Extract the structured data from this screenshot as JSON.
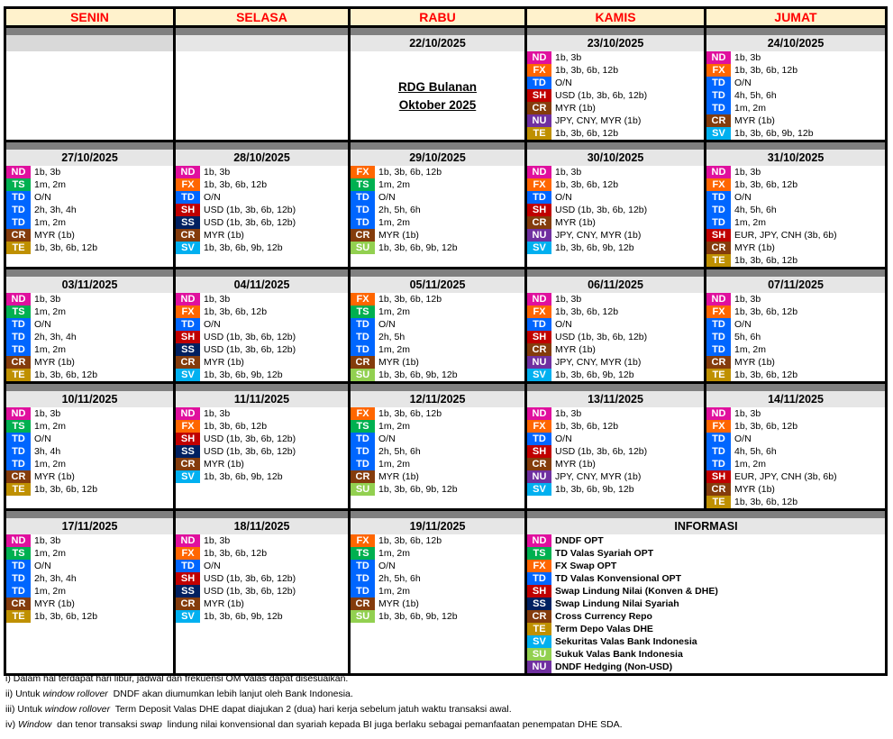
{
  "days": [
    "SENIN",
    "SELASA",
    "RABU",
    "KAMIS",
    "JUMAT"
  ],
  "colors": {
    "ND": "#e0109e",
    "TS": "#00b050",
    "FX": "#ff6600",
    "TD": "#0066ff",
    "SH": "#c00000",
    "SS": "#002060",
    "CR": "#843c0c",
    "TE": "#bf9000",
    "SV": "#00b0f0",
    "SU": "#92d050",
    "NU": "#7030a0"
  },
  "weeks": [
    [
      {
        "date": "",
        "entries": []
      },
      {
        "date": "",
        "entries": []
      },
      {
        "date": "22/10/2025",
        "note": [
          "RDG Bulanan",
          "Oktober 2025"
        ],
        "entries": []
      },
      {
        "date": "23/10/2025",
        "entries": [
          [
            "ND",
            "1b, 3b"
          ],
          [
            "FX",
            "1b, 3b, 6b, 12b"
          ],
          [
            "TD",
            "O/N"
          ],
          [
            "SH",
            "USD (1b, 3b, 6b, 12b)"
          ],
          [
            "CR",
            "MYR (1b)"
          ],
          [
            "NU",
            "JPY, CNY, MYR (1b)"
          ],
          [
            "TE",
            "1b, 3b, 6b, 12b"
          ]
        ]
      },
      {
        "date": "24/10/2025",
        "entries": [
          [
            "ND",
            "1b, 3b"
          ],
          [
            "FX",
            "1b, 3b, 6b, 12b"
          ],
          [
            "TD",
            "O/N"
          ],
          [
            "TD",
            "4h, 5h, 6h"
          ],
          [
            "TD",
            "1m, 2m"
          ],
          [
            "CR",
            "MYR (1b)"
          ],
          [
            "SV",
            "1b, 3b, 6b, 9b, 12b"
          ]
        ]
      }
    ],
    [
      {
        "date": "27/10/2025",
        "entries": [
          [
            "ND",
            "1b, 3b"
          ],
          [
            "TS",
            "1m, 2m"
          ],
          [
            "TD",
            "O/N"
          ],
          [
            "TD",
            "2h, 3h, 4h"
          ],
          [
            "TD",
            "1m, 2m"
          ],
          [
            "CR",
            "MYR (1b)"
          ],
          [
            "TE",
            "1b, 3b, 6b, 12b"
          ]
        ]
      },
      {
        "date": "28/10/2025",
        "entries": [
          [
            "ND",
            "1b, 3b"
          ],
          [
            "FX",
            "1b, 3b, 6b, 12b"
          ],
          [
            "TD",
            "O/N"
          ],
          [
            "SH",
            "USD (1b, 3b, 6b, 12b)"
          ],
          [
            "SS",
            "USD (1b, 3b, 6b, 12b)"
          ],
          [
            "CR",
            "MYR (1b)"
          ],
          [
            "SV",
            "1b, 3b, 6b, 9b, 12b"
          ]
        ]
      },
      {
        "date": "29/10/2025",
        "entries": [
          [
            "FX",
            "1b, 3b, 6b, 12b"
          ],
          [
            "TS",
            "1m, 2m"
          ],
          [
            "TD",
            "O/N"
          ],
          [
            "TD",
            "2h, 5h, 6h"
          ],
          [
            "TD",
            "1m, 2m"
          ],
          [
            "CR",
            "MYR (1b)"
          ],
          [
            "SU",
            "1b, 3b, 6b, 9b, 12b"
          ]
        ]
      },
      {
        "date": "30/10/2025",
        "entries": [
          [
            "ND",
            "1b, 3b"
          ],
          [
            "FX",
            "1b, 3b, 6b, 12b"
          ],
          [
            "TD",
            "O/N"
          ],
          [
            "SH",
            "USD (1b, 3b, 6b, 12b)"
          ],
          [
            "CR",
            "MYR (1b)"
          ],
          [
            "NU",
            "JPY, CNY, MYR (1b)"
          ],
          [
            "SV",
            "1b, 3b, 6b, 9b, 12b"
          ]
        ]
      },
      {
        "date": "31/10/2025",
        "entries": [
          [
            "ND",
            "1b, 3b"
          ],
          [
            "FX",
            "1b, 3b, 6b, 12b"
          ],
          [
            "TD",
            "O/N"
          ],
          [
            "TD",
            "4h, 5h, 6h"
          ],
          [
            "TD",
            "1m, 2m"
          ],
          [
            "SH",
            "EUR, JPY, CNH (3b, 6b)"
          ],
          [
            "CR",
            "MYR (1b)"
          ],
          [
            "TE",
            "1b, 3b, 6b, 12b"
          ]
        ]
      }
    ],
    [
      {
        "date": "03/11/2025",
        "entries": [
          [
            "ND",
            "1b, 3b"
          ],
          [
            "TS",
            "1m, 2m"
          ],
          [
            "TD",
            "O/N"
          ],
          [
            "TD",
            "2h, 3h, 4h"
          ],
          [
            "TD",
            "1m, 2m"
          ],
          [
            "CR",
            "MYR (1b)"
          ],
          [
            "TE",
            "1b, 3b, 6b, 12b"
          ]
        ]
      },
      {
        "date": "04/11/2025",
        "entries": [
          [
            "ND",
            "1b, 3b"
          ],
          [
            "FX",
            "1b, 3b, 6b, 12b"
          ],
          [
            "TD",
            "O/N"
          ],
          [
            "SH",
            "USD (1b, 3b, 6b, 12b)"
          ],
          [
            "SS",
            "USD (1b, 3b, 6b, 12b)"
          ],
          [
            "CR",
            "MYR (1b)"
          ],
          [
            "SV",
            "1b, 3b, 6b, 9b, 12b"
          ]
        ]
      },
      {
        "date": "05/11/2025",
        "entries": [
          [
            "FX",
            "1b, 3b, 6b, 12b"
          ],
          [
            "TS",
            "1m, 2m"
          ],
          [
            "TD",
            "O/N"
          ],
          [
            "TD",
            "2h, 5h"
          ],
          [
            "TD",
            "1m, 2m"
          ],
          [
            "CR",
            "MYR (1b)"
          ],
          [
            "SU",
            "1b, 3b, 6b, 9b, 12b"
          ]
        ]
      },
      {
        "date": "06/11/2025",
        "entries": [
          [
            "ND",
            "1b, 3b"
          ],
          [
            "FX",
            "1b, 3b, 6b, 12b"
          ],
          [
            "TD",
            "O/N"
          ],
          [
            "SH",
            "USD (1b, 3b, 6b, 12b)"
          ],
          [
            "CR",
            "MYR (1b)"
          ],
          [
            "NU",
            "JPY, CNY, MYR (1b)"
          ],
          [
            "SV",
            "1b, 3b, 6b, 9b, 12b"
          ]
        ]
      },
      {
        "date": "07/11/2025",
        "entries": [
          [
            "ND",
            "1b, 3b"
          ],
          [
            "FX",
            "1b, 3b, 6b, 12b"
          ],
          [
            "TD",
            "O/N"
          ],
          [
            "TD",
            "5h, 6h"
          ],
          [
            "TD",
            "1m, 2m"
          ],
          [
            "CR",
            "MYR (1b)"
          ],
          [
            "TE",
            "1b, 3b, 6b, 12b"
          ]
        ]
      }
    ],
    [
      {
        "date": "10/11/2025",
        "entries": [
          [
            "ND",
            "1b, 3b"
          ],
          [
            "TS",
            "1m, 2m"
          ],
          [
            "TD",
            "O/N"
          ],
          [
            "TD",
            "3h, 4h"
          ],
          [
            "TD",
            "1m, 2m"
          ],
          [
            "CR",
            "MYR (1b)"
          ],
          [
            "TE",
            "1b, 3b, 6b, 12b"
          ]
        ]
      },
      {
        "date": "11/11/2025",
        "entries": [
          [
            "ND",
            "1b, 3b"
          ],
          [
            "FX",
            "1b, 3b, 6b, 12b"
          ],
          [
            "SH",
            "USD (1b, 3b, 6b, 12b)"
          ],
          [
            "SS",
            "USD (1b, 3b, 6b, 12b)"
          ],
          [
            "CR",
            "MYR (1b)"
          ],
          [
            "SV",
            "1b, 3b, 6b, 9b, 12b"
          ]
        ]
      },
      {
        "date": "12/11/2025",
        "entries": [
          [
            "FX",
            "1b, 3b, 6b, 12b"
          ],
          [
            "TS",
            "1m, 2m"
          ],
          [
            "TD",
            "O/N"
          ],
          [
            "TD",
            "2h, 5h, 6h"
          ],
          [
            "TD",
            "1m, 2m"
          ],
          [
            "CR",
            "MYR (1b)"
          ],
          [
            "SU",
            "1b, 3b, 6b, 9b, 12b"
          ]
        ]
      },
      {
        "date": "13/11/2025",
        "entries": [
          [
            "ND",
            "1b, 3b"
          ],
          [
            "FX",
            "1b, 3b, 6b, 12b"
          ],
          [
            "TD",
            "O/N"
          ],
          [
            "SH",
            "USD (1b, 3b, 6b, 12b)"
          ],
          [
            "CR",
            "MYR (1b)"
          ],
          [
            "NU",
            "JPY, CNY, MYR (1b)"
          ],
          [
            "SV",
            "1b, 3b, 6b, 9b, 12b"
          ]
        ]
      },
      {
        "date": "14/11/2025",
        "entries": [
          [
            "ND",
            "1b, 3b"
          ],
          [
            "FX",
            "1b, 3b, 6b, 12b"
          ],
          [
            "TD",
            "O/N"
          ],
          [
            "TD",
            "4h, 5h, 6h"
          ],
          [
            "TD",
            "1m, 2m"
          ],
          [
            "SH",
            "EUR, JPY, CNH (3b, 6b)"
          ],
          [
            "CR",
            "MYR (1b)"
          ],
          [
            "TE",
            "1b, 3b, 6b, 12b"
          ]
        ]
      }
    ],
    [
      {
        "date": "17/11/2025",
        "entries": [
          [
            "ND",
            "1b, 3b"
          ],
          [
            "TS",
            "1m, 2m"
          ],
          [
            "TD",
            "O/N"
          ],
          [
            "TD",
            "2h, 3h, 4h"
          ],
          [
            "TD",
            "1m, 2m"
          ],
          [
            "CR",
            "MYR (1b)"
          ],
          [
            "TE",
            "1b, 3b, 6b, 12b"
          ]
        ]
      },
      {
        "date": "18/11/2025",
        "entries": [
          [
            "ND",
            "1b, 3b"
          ],
          [
            "FX",
            "1b, 3b, 6b, 12b"
          ],
          [
            "TD",
            "O/N"
          ],
          [
            "SH",
            "USD (1b, 3b, 6b, 12b)"
          ],
          [
            "SS",
            "USD (1b, 3b, 6b, 12b)"
          ],
          [
            "CR",
            "MYR (1b)"
          ],
          [
            "SV",
            "1b, 3b, 6b, 9b, 12b"
          ]
        ]
      },
      {
        "date": "19/11/2025",
        "entries": [
          [
            "FX",
            "1b, 3b, 6b, 12b"
          ],
          [
            "TS",
            "1m, 2m"
          ],
          [
            "TD",
            "O/N"
          ],
          [
            "TD",
            "2h, 5h, 6h"
          ],
          [
            "TD",
            "1m, 2m"
          ],
          [
            "CR",
            "MYR (1b)"
          ],
          [
            "SU",
            "1b, 3b, 6b, 9b, 12b"
          ]
        ]
      }
    ]
  ],
  "info": {
    "title": "INFORMASI",
    "entries": [
      [
        "ND",
        "DNDF OPT"
      ],
      [
        "TS",
        "TD Valas Syariah OPT"
      ],
      [
        "FX",
        "FX Swap OPT"
      ],
      [
        "TD",
        "TD Valas Konvensional OPT"
      ],
      [
        "SH",
        "Swap Lindung Nilai (Konven & DHE)"
      ],
      [
        "SS",
        "Swap Lindung Nilai Syariah"
      ],
      [
        "CR",
        "Cross Currency Repo"
      ],
      [
        "TE",
        "Term Depo Valas DHE"
      ],
      [
        "SV",
        "Sekuritas Valas Bank Indonesia"
      ],
      [
        "SU",
        "Sukuk Valas Bank Indonesia"
      ],
      [
        "NU",
        "DNDF Hedging (Non-USD)"
      ]
    ]
  },
  "notes": [
    [
      [
        "i) Dalam hal terdapat hari libur, jadwal dan frekuensi OM Valas dapat disesuaikan.",
        false
      ]
    ],
    [
      [
        "ii) Untuk ",
        false
      ],
      [
        "window rollover",
        true
      ],
      [
        "  DNDF akan diumumkan lebih lanjut oleh Bank Indonesia.",
        false
      ]
    ],
    [
      [
        "iii) Untuk ",
        false
      ],
      [
        "window rollover",
        true
      ],
      [
        "  Term Deposit Valas DHE dapat diajukan 2 (dua) hari kerja sebelum jatuh waktu transaksi awal.",
        false
      ]
    ],
    [
      [
        "iv) ",
        false
      ],
      [
        "Window",
        true
      ],
      [
        "  dan tenor transaksi ",
        false
      ],
      [
        "swap",
        true
      ],
      [
        "  lindung nilai konvensional dan syariah kepada BI juga berlaku sebagai pemanfaatan penempatan DHE SDA.",
        false
      ]
    ]
  ]
}
